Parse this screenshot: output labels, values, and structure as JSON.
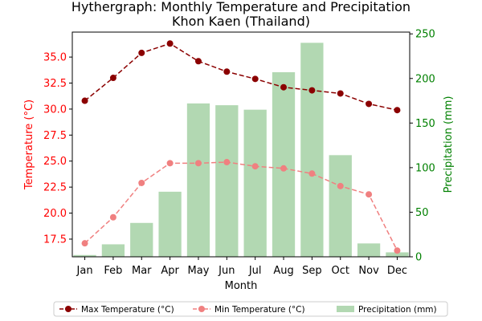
{
  "chart_data": {
    "type": "bar",
    "title": "Hythergraph: Monthly Temperature and Precipitation",
    "subtitle": "Khon Kaen (Thailand)",
    "xlabel": "Month",
    "ylabel_left": "Temperature (°C)",
    "ylabel_right": "Precipitation (mm)",
    "categories": [
      "Jan",
      "Feb",
      "Mar",
      "Apr",
      "May",
      "Jun",
      "Jul",
      "Aug",
      "Sep",
      "Oct",
      "Nov",
      "Dec"
    ],
    "ylim_left": [
      15.8,
      37.4
    ],
    "yticks_left": [
      "17.5",
      "20.0",
      "22.5",
      "25.0",
      "27.5",
      "30.0",
      "32.5",
      "35.0"
    ],
    "ylim_right": [
      0,
      252
    ],
    "yticks_right": [
      "0",
      "50",
      "100",
      "150",
      "200",
      "250"
    ],
    "series": [
      {
        "name": "Max Temperature (°C)",
        "kind": "line",
        "axis": "left",
        "color": "#8b0000",
        "linestyle": "dashed",
        "marker": "circle",
        "values": [
          30.8,
          33.0,
          35.4,
          36.3,
          34.6,
          33.6,
          32.9,
          32.1,
          31.8,
          31.5,
          30.5,
          29.9
        ]
      },
      {
        "name": "Min Temperature (°C)",
        "kind": "line",
        "axis": "left",
        "color": "#f08080",
        "linestyle": "dashed",
        "marker": "circle",
        "values": [
          17.1,
          19.6,
          22.9,
          24.8,
          24.8,
          24.9,
          24.5,
          24.3,
          23.8,
          22.6,
          21.8,
          16.4
        ]
      },
      {
        "name": "Precipitation (mm)",
        "kind": "bar",
        "axis": "right",
        "color": "#b2d8b2",
        "values": [
          2,
          14,
          38,
          73,
          172,
          170,
          165,
          207,
          240,
          114,
          15,
          5
        ]
      }
    ],
    "grid": false,
    "legend": "bottom"
  },
  "colors": {
    "left_axis": "#ff0000",
    "right_axis": "#008000",
    "text": "#000000"
  }
}
